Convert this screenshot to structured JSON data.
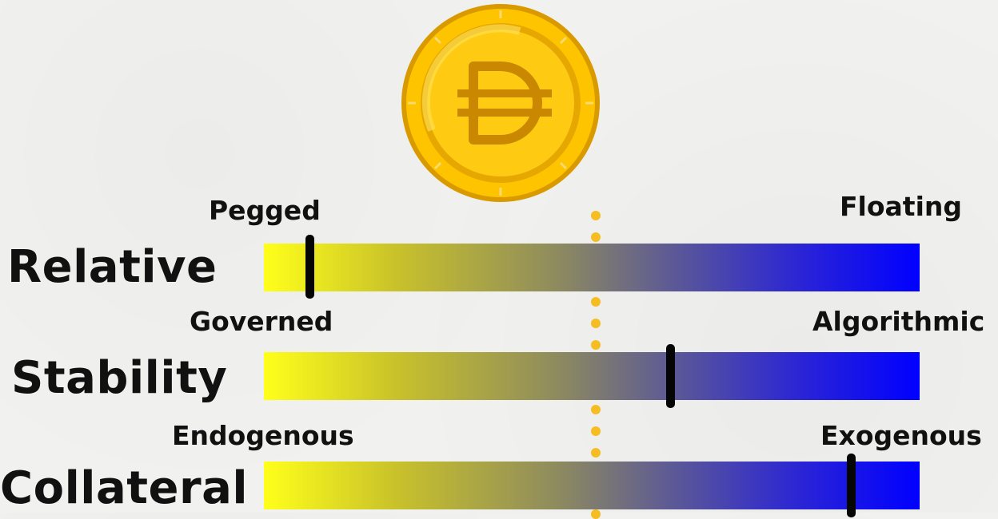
{
  "coin": {
    "icon": "dai-coin-icon"
  },
  "scales": [
    {
      "label": "Relative",
      "left": "Pegged",
      "right": "Floating",
      "value": 0.07
    },
    {
      "label": "Stability",
      "left": "Governed",
      "right": "Algorithmic",
      "value": 0.62
    },
    {
      "label": "Collateral",
      "left": "Endogenous",
      "right": "Exogenous",
      "value": 0.895
    }
  ],
  "colors": {
    "gradient_start": "#ffff1a",
    "gradient_end": "#0000ff",
    "marker": "#050505",
    "midline": "#f5bd22",
    "coin": "#f5b800"
  }
}
